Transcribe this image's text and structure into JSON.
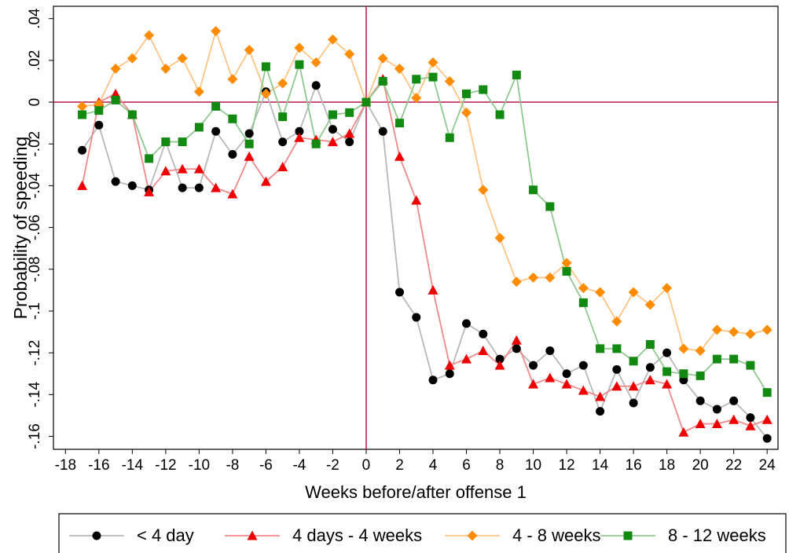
{
  "chart_data": {
    "type": "line",
    "x_label": "Weeks before/after offense 1",
    "y_label": "Probability of speeding",
    "x": [
      -17,
      -16,
      -15,
      -14,
      -13,
      -12,
      -11,
      -10,
      -9,
      -8,
      -7,
      -6,
      -5,
      -4,
      -3,
      -2,
      -1,
      0,
      1,
      2,
      3,
      4,
      5,
      6,
      7,
      8,
      9,
      10,
      11,
      12,
      13,
      14,
      15,
      16,
      17,
      18,
      19,
      20,
      21,
      22,
      23,
      24
    ],
    "xlim": [
      -18.72,
      24.65
    ],
    "xticks": [
      -18,
      -16,
      -14,
      -12,
      -10,
      -8,
      -6,
      -4,
      -2,
      0,
      2,
      4,
      6,
      8,
      10,
      12,
      14,
      16,
      18,
      20,
      22,
      24
    ],
    "ylim": [
      -0.1662,
      0.0459
    ],
    "yticks": [
      {
        "value": 0.04,
        "label": ".04"
      },
      {
        "value": 0.02,
        "label": ".02"
      },
      0,
      {
        "value": -0.02,
        "label": "-.02"
      },
      {
        "value": -0.04,
        "label": "-.04"
      },
      {
        "value": -0.06,
        "label": "-.06"
      },
      {
        "value": -0.08,
        "label": "-.08"
      },
      {
        "value": -0.1,
        "label": "-.1"
      },
      {
        "value": -0.12,
        "label": "-.12"
      },
      {
        "value": -0.14,
        "label": "-.14"
      },
      {
        "value": -0.16,
        "label": "-.16"
      }
    ],
    "reference_lines": {
      "x": 0,
      "y": 0,
      "color": "#b5174b"
    },
    "legend": "bottom",
    "series": [
      {
        "name": "< 4 day",
        "color": "#000000",
        "line_color": "#b8b8b8",
        "marker": "circle",
        "values": [
          -0.023,
          -0.011,
          -0.038,
          -0.04,
          -0.042,
          -0.019,
          -0.041,
          -0.041,
          -0.014,
          -0.025,
          -0.015,
          0.005,
          -0.019,
          -0.014,
          0.008,
          -0.013,
          -0.019,
          0,
          -0.014,
          -0.091,
          -0.103,
          -0.133,
          -0.13,
          -0.106,
          -0.111,
          -0.123,
          -0.118,
          -0.126,
          -0.119,
          -0.13,
          -0.126,
          -0.148,
          -0.128,
          -0.144,
          -0.127,
          -0.12,
          -0.133,
          -0.143,
          -0.147,
          -0.143,
          -0.151,
          -0.161
        ]
      },
      {
        "name": "4 days - 4 weeks",
        "color": "#ee0000",
        "line_color": "#f08a8a",
        "marker": "triangle",
        "values": [
          -0.04,
          0.0,
          0.004,
          -0.006,
          -0.043,
          -0.033,
          -0.032,
          -0.032,
          -0.041,
          -0.044,
          -0.026,
          -0.038,
          -0.031,
          -0.017,
          -0.018,
          -0.019,
          -0.015,
          0,
          0.011,
          -0.026,
          -0.047,
          -0.09,
          -0.126,
          -0.123,
          -0.119,
          -0.126,
          -0.114,
          -0.135,
          -0.132,
          -0.135,
          -0.138,
          -0.141,
          -0.136,
          -0.136,
          -0.133,
          -0.135,
          -0.158,
          -0.154,
          -0.154,
          -0.152,
          -0.155,
          -0.152
        ]
      },
      {
        "name": "4 - 8 weeks",
        "color": "#ff8c00",
        "line_color": "#ffc485",
        "marker": "diamond",
        "values": [
          -0.002,
          -0.001,
          0.016,
          0.021,
          0.032,
          0.016,
          0.021,
          0.005,
          0.034,
          0.011,
          0.025,
          0.004,
          0.009,
          0.026,
          0.019,
          0.03,
          0.023,
          0,
          0.021,
          0.016,
          0.002,
          0.019,
          0.01,
          -0.005,
          -0.042,
          -0.065,
          -0.086,
          -0.084,
          -0.084,
          -0.077,
          -0.089,
          -0.091,
          -0.105,
          -0.091,
          -0.097,
          -0.089,
          -0.118,
          -0.119,
          -0.109,
          -0.11,
          -0.111,
          -0.109
        ]
      },
      {
        "name": "8 - 12 weeks",
        "color": "#128a12",
        "line_color": "#8fc98f",
        "marker": "square",
        "values": [
          -0.006,
          -0.004,
          0.001,
          -0.006,
          -0.027,
          -0.019,
          -0.019,
          -0.012,
          -0.002,
          -0.008,
          -0.02,
          0.017,
          -0.007,
          0.018,
          -0.02,
          -0.006,
          -0.005,
          0,
          0.01,
          -0.01,
          0.011,
          0.012,
          -0.017,
          0.004,
          0.006,
          -0.006,
          0.013,
          -0.042,
          -0.05,
          -0.081,
          -0.096,
          -0.118,
          -0.118,
          -0.124,
          -0.116,
          -0.129,
          -0.13,
          -0.131,
          -0.123,
          -0.123,
          -0.126,
          -0.139
        ]
      }
    ]
  }
}
